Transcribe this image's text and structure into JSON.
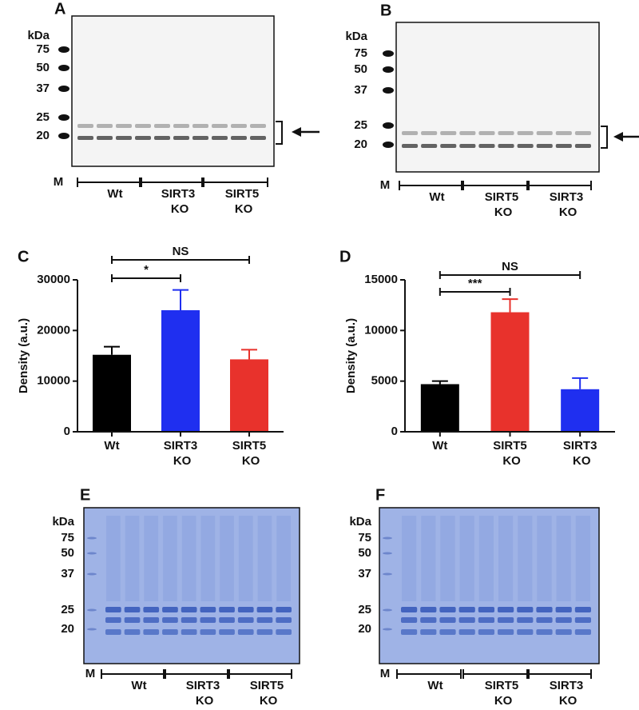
{
  "blots": [
    {
      "panel": "A",
      "unit": "kDa",
      "markers": [
        "75",
        "50",
        "37",
        "25",
        "20"
      ],
      "marker_lane": "M",
      "groups": [
        "Wt",
        "SIRT3 KO",
        "SIRT5 KO"
      ]
    },
    {
      "panel": "B",
      "unit": "kDa",
      "markers": [
        "75",
        "50",
        "37",
        "25",
        "20"
      ],
      "marker_lane": "M",
      "groups": [
        "Wt",
        "SIRT5 KO",
        "SIRT3 KO"
      ]
    },
    {
      "panel": "E",
      "unit": "kDa",
      "markers": [
        "75",
        "50",
        "37",
        "25",
        "20"
      ],
      "marker_lane": "M",
      "groups": [
        "Wt",
        "SIRT3 KO",
        "SIRT5 KO"
      ]
    },
    {
      "panel": "F",
      "unit": "kDa",
      "markers": [
        "75",
        "50",
        "37",
        "25",
        "20"
      ],
      "marker_lane": "M",
      "groups": [
        "Wt",
        "SIRT5 KO",
        "SIRT3 KO"
      ]
    }
  ],
  "chart_data": [
    {
      "type": "bar",
      "panel": "C",
      "ylabel": "Density (a.u.)",
      "categories": [
        "Wt",
        "SIRT3 KO",
        "SIRT5 KO"
      ],
      "values": [
        15200,
        24000,
        14300
      ],
      "errors": [
        1600,
        4000,
        1900
      ],
      "colors": [
        "#000000",
        "#1f2ff0",
        "#e8322c"
      ],
      "ylim": [
        0,
        30000
      ],
      "yticks": [
        0,
        10000,
        20000,
        30000
      ],
      "comparisons": [
        "*",
        "NS"
      ]
    },
    {
      "type": "bar",
      "panel": "D",
      "ylabel": "Density (a.u.)",
      "categories": [
        "Wt",
        "SIRT5 KO",
        "SIRT3 KO"
      ],
      "values": [
        4700,
        11800,
        4200
      ],
      "errors": [
        300,
        1300,
        1100
      ],
      "colors": [
        "#000000",
        "#e8322c",
        "#1f2ff0"
      ],
      "ylim": [
        0,
        15000
      ],
      "yticks": [
        0,
        5000,
        10000,
        15000
      ],
      "comparisons": [
        "***",
        "NS"
      ]
    }
  ]
}
